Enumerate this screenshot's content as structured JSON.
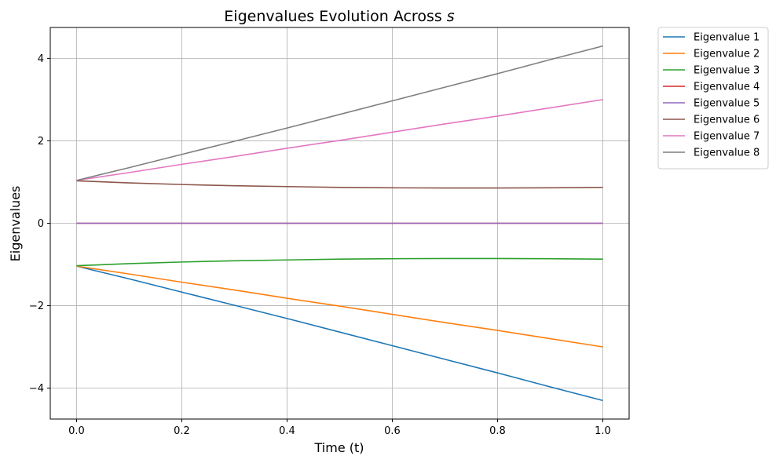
{
  "chart_data": {
    "type": "line",
    "title_text": "Eigenvalues Evolution Across ",
    "title_var": "s",
    "xlabel": "Time (t)",
    "ylabel": "Eigenvalues",
    "xlim": [
      -0.05,
      1.05
    ],
    "ylim": [
      -4.75,
      4.75
    ],
    "xticks": [
      0.0,
      0.2,
      0.4,
      0.6,
      0.8,
      1.0
    ],
    "xtick_labels": [
      "0.0",
      "0.2",
      "0.4",
      "0.6",
      "0.8",
      "1.0"
    ],
    "yticks": [
      -4,
      -2,
      0,
      2,
      4
    ],
    "ytick_labels": [
      "−4",
      "−2",
      "0",
      "2",
      "4"
    ],
    "grid": true,
    "legend_position": "outside-upper-right",
    "x": [
      0.0,
      0.1,
      0.2,
      0.3,
      0.4,
      0.5,
      0.6,
      0.7,
      0.8,
      0.9,
      1.0
    ],
    "series": [
      {
        "name": "Eigenvalue 1",
        "color": "#1f77b4",
        "values": [
          -1.04,
          -1.35,
          -1.67,
          -1.99,
          -2.31,
          -2.64,
          -2.97,
          -3.3,
          -3.63,
          -3.97,
          -4.3
        ]
      },
      {
        "name": "Eigenvalue 2",
        "color": "#ff7f0e",
        "values": [
          -1.04,
          -1.23,
          -1.43,
          -1.62,
          -1.82,
          -2.01,
          -2.21,
          -2.41,
          -2.6,
          -2.8,
          -3.0
        ]
      },
      {
        "name": "Eigenvalue 3",
        "color": "#2ca02c",
        "values": [
          -1.03,
          -0.98,
          -0.94,
          -0.91,
          -0.89,
          -0.87,
          -0.86,
          -0.855,
          -0.855,
          -0.86,
          -0.87
        ]
      },
      {
        "name": "Eigenvalue 4",
        "color": "#d62728",
        "values": [
          0,
          0,
          0,
          0,
          0,
          0,
          0,
          0,
          0,
          0,
          0
        ]
      },
      {
        "name": "Eigenvalue 5",
        "color": "#9467bd",
        "values": [
          0,
          0,
          0,
          0,
          0,
          0,
          0,
          0,
          0,
          0,
          0
        ]
      },
      {
        "name": "Eigenvalue 6",
        "color": "#8c564b",
        "values": [
          1.03,
          0.98,
          0.94,
          0.91,
          0.89,
          0.87,
          0.86,
          0.855,
          0.855,
          0.86,
          0.87
        ]
      },
      {
        "name": "Eigenvalue 7",
        "color": "#e377c2",
        "values": [
          1.04,
          1.23,
          1.43,
          1.62,
          1.82,
          2.01,
          2.21,
          2.41,
          2.6,
          2.8,
          3.0
        ]
      },
      {
        "name": "Eigenvalue 8",
        "color": "#7f7f7f",
        "values": [
          1.04,
          1.35,
          1.67,
          1.99,
          2.31,
          2.64,
          2.97,
          3.3,
          3.63,
          3.97,
          4.3
        ]
      }
    ]
  }
}
